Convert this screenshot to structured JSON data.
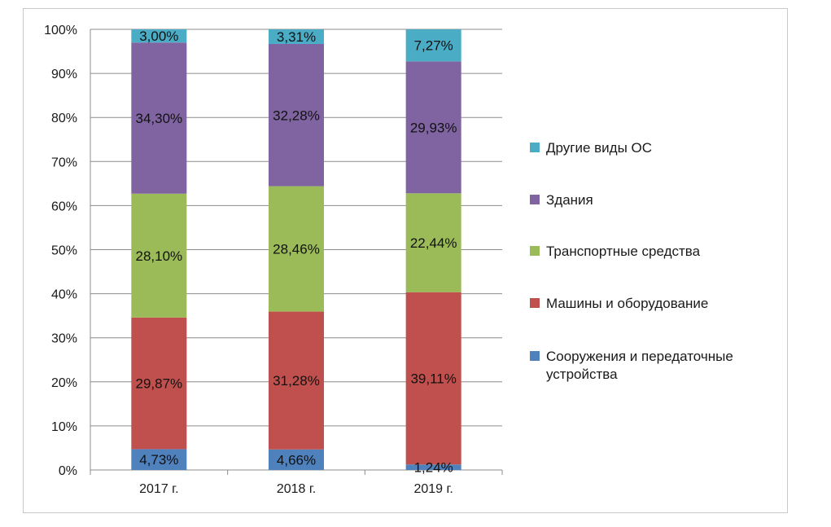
{
  "chart_data": {
    "type": "bar",
    "stacked": true,
    "percent_stacked": true,
    "categories": [
      "2017 г.",
      "2018 г.",
      "2019 г."
    ],
    "y_ticks": [
      "0%",
      "10%",
      "20%",
      "30%",
      "40%",
      "50%",
      "60%",
      "70%",
      "80%",
      "90%",
      "100%"
    ],
    "ylim": [
      0,
      100
    ],
    "grid": true,
    "legend_position": "right",
    "series": [
      {
        "name": "Сооружения и передаточные устройства",
        "color": "#4f81bd",
        "values": [
          4.73,
          4.66,
          1.24
        ],
        "labels": [
          "4,73%",
          "4,66%",
          "1,24%"
        ]
      },
      {
        "name": "Машины и оборудование",
        "color": "#c0504d",
        "values": [
          29.87,
          31.28,
          39.11
        ],
        "labels": [
          "29,87%",
          "31,28%",
          "39,11%"
        ]
      },
      {
        "name": "Транспортные средства",
        "color": "#9bbb59",
        "values": [
          28.1,
          28.46,
          22.44
        ],
        "labels": [
          "28,10%",
          "28,46%",
          "22,44%"
        ]
      },
      {
        "name": "Здания",
        "color": "#8064a2",
        "values": [
          34.3,
          32.28,
          29.93
        ],
        "labels": [
          "34,30%",
          "32,28%",
          "29,93%"
        ]
      },
      {
        "name": "Другие виды ОС",
        "color": "#4bacc6",
        "values": [
          3.0,
          3.31,
          7.27
        ],
        "labels": [
          "3,00%",
          "3,31%",
          "7,27%"
        ]
      }
    ],
    "legend_order": [
      "Другие виды ОС",
      "Здания",
      "Транспортные средства",
      "Машины и оборудование",
      "Сооружения и передаточные устройства"
    ]
  }
}
